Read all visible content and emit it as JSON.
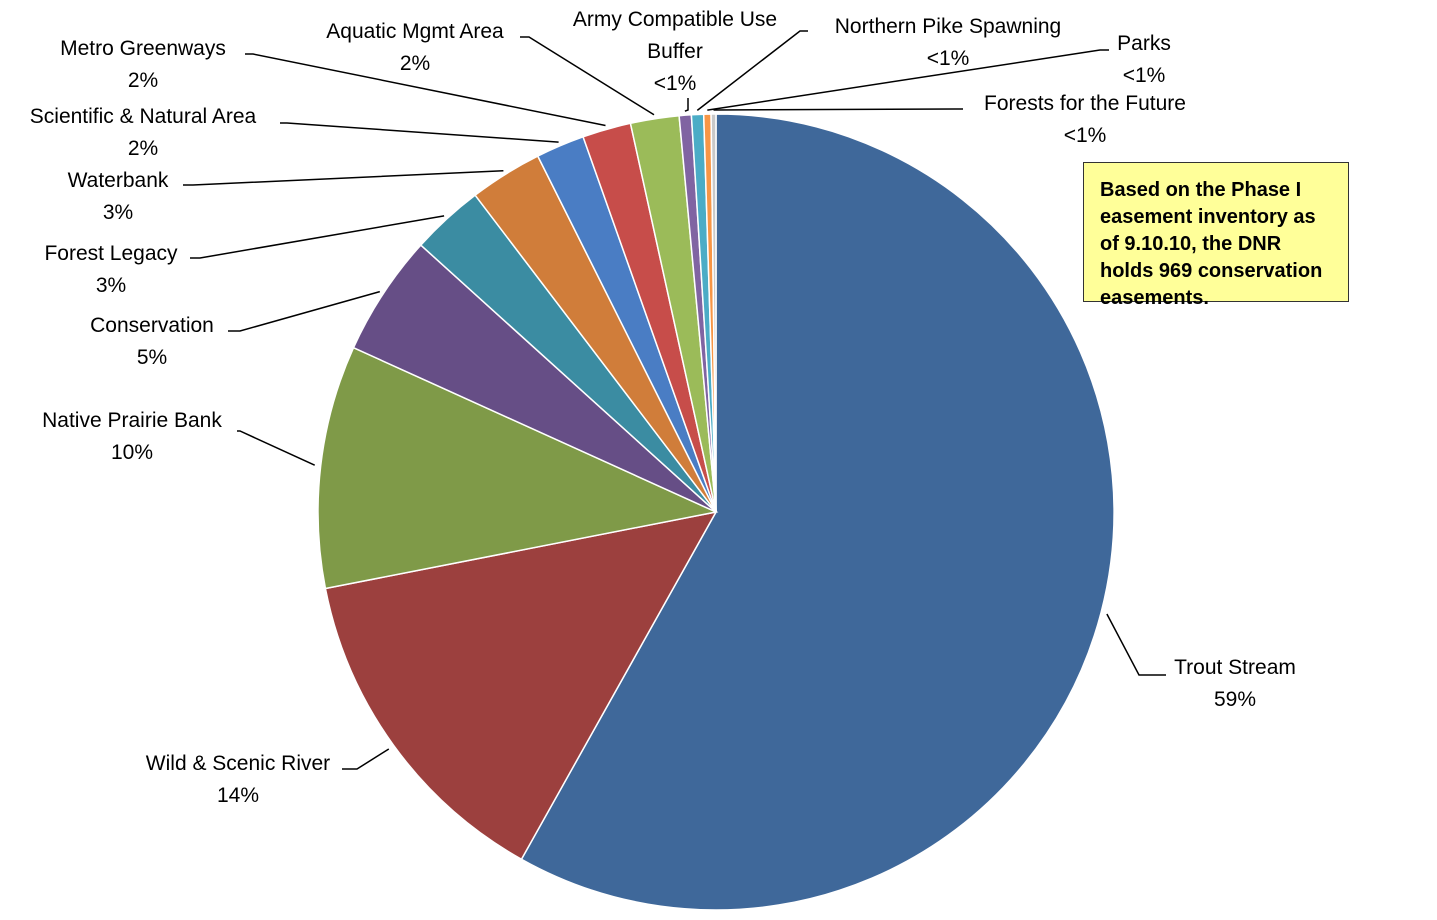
{
  "chart_data": {
    "type": "pie",
    "title": "",
    "start_angle_deg": 0,
    "direction": "clockwise",
    "slices": [
      {
        "label": "Trout Stream",
        "value": 59,
        "display": "59%",
        "color": "#3f689a"
      },
      {
        "label": "Wild & Scenic River",
        "value": 14,
        "display": "14%",
        "color": "#9c403e"
      },
      {
        "label": "Native Prairie Bank",
        "value": 10,
        "display": "10%",
        "color": "#7f9a48"
      },
      {
        "label": "Conservation",
        "value": 5,
        "display": "5%",
        "color": "#664e86"
      },
      {
        "label": "Forest Legacy",
        "value": 3,
        "display": "3%",
        "color": "#3b8ca2"
      },
      {
        "label": "Waterbank",
        "value": 3,
        "display": "3%",
        "color": "#d07d3a"
      },
      {
        "label": "Scientific & Natural Area",
        "value": 2,
        "display": "2%",
        "color": "#4a7dc4"
      },
      {
        "label": "Metro Greenways",
        "value": 2,
        "display": "2%",
        "color": "#c74d4a"
      },
      {
        "label": "Aquatic Mgmt Area",
        "value": 2,
        "display": "2%",
        "color": "#9bbb59"
      },
      {
        "label": "Army Compatible Use Buffer",
        "value": 0.5,
        "display": "<1%",
        "color": "#8064a2"
      },
      {
        "label": "Northern Pike Spawning",
        "value": 0.5,
        "display": "<1%",
        "color": "#4bacc6"
      },
      {
        "label": "Parks",
        "value": 0.3,
        "display": "<1%",
        "color": "#f79646"
      },
      {
        "label": "Forests for the Future",
        "value": 0.2,
        "display": "<1%",
        "color": "#c9c9c9"
      }
    ]
  },
  "note": {
    "text": "Based on the Phase I easement inventory as of 9.10.10, the DNR holds 969 conservation easements."
  }
}
